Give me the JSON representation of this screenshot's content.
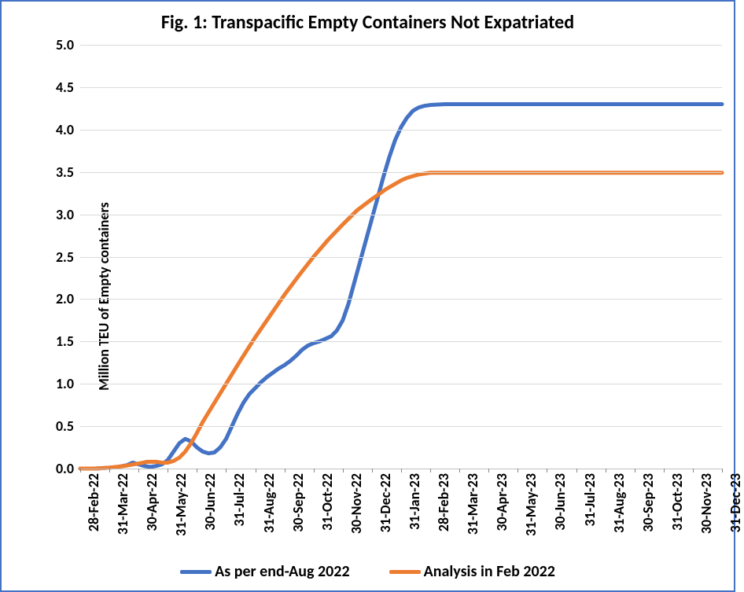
{
  "chart": {
    "type": "line",
    "title": "Fig. 1: Transpacific Empty Containers Not Expatriated",
    "ylabel": "Million TEU of Empty containers",
    "title_fontsize": 24,
    "label_fontsize": 18,
    "tick_fontsize": 18,
    "legend_fontsize": 20,
    "font_weight": "bold",
    "background_color": "#ffffff",
    "border_color": "#4472c4",
    "grid_color": "#d9d9d9",
    "line_width": 5,
    "ylim": [
      0.0,
      5.0
    ],
    "ytick_step": 0.5,
    "yticks": [
      "0.0",
      "0.5",
      "1.0",
      "1.5",
      "2.0",
      "2.5",
      "3.0",
      "3.5",
      "4.0",
      "4.5",
      "5.0"
    ],
    "xticks": [
      "28-Feb-22",
      "31-Mar-22",
      "30-Apr-22",
      "31-May-22",
      "30-Jun-22",
      "31-Jul-22",
      "31-Aug-22",
      "30-Sep-22",
      "31-Oct-22",
      "30-Nov-22",
      "31-Dec-22",
      "31-Jan-23",
      "28-Feb-23",
      "31-Mar-23",
      "30-Apr-23",
      "31-May-23",
      "30-Jun-23",
      "31-Jul-23",
      "31-Aug-23",
      "30-Sep-23",
      "31-Oct-23",
      "30-Nov-23",
      "31-Dec-23"
    ],
    "series": [
      {
        "name": "As per end-Aug 2022",
        "color": "#4472c4",
        "points": [
          [
            0,
            0.0
          ],
          [
            0.5,
            0.0
          ],
          [
            1,
            0.01
          ],
          [
            1.3,
            0.02
          ],
          [
            1.6,
            0.04
          ],
          [
            1.8,
            0.07
          ],
          [
            2,
            0.05
          ],
          [
            2.2,
            0.03
          ],
          [
            2.4,
            0.02
          ],
          [
            2.6,
            0.03
          ],
          [
            2.8,
            0.05
          ],
          [
            3,
            0.1
          ],
          [
            3.2,
            0.2
          ],
          [
            3.4,
            0.3
          ],
          [
            3.6,
            0.35
          ],
          [
            3.8,
            0.32
          ],
          [
            4,
            0.25
          ],
          [
            4.2,
            0.2
          ],
          [
            4.4,
            0.18
          ],
          [
            4.6,
            0.19
          ],
          [
            4.8,
            0.25
          ],
          [
            5,
            0.35
          ],
          [
            5.2,
            0.5
          ],
          [
            5.4,
            0.65
          ],
          [
            5.6,
            0.78
          ],
          [
            5.8,
            0.88
          ],
          [
            6,
            0.95
          ],
          [
            6.2,
            1.02
          ],
          [
            6.4,
            1.08
          ],
          [
            6.6,
            1.13
          ],
          [
            6.8,
            1.18
          ],
          [
            7,
            1.22
          ],
          [
            7.2,
            1.27
          ],
          [
            7.4,
            1.33
          ],
          [
            7.6,
            1.4
          ],
          [
            7.8,
            1.45
          ],
          [
            8,
            1.48
          ],
          [
            8.2,
            1.5
          ],
          [
            8.4,
            1.53
          ],
          [
            8.6,
            1.56
          ],
          [
            8.8,
            1.63
          ],
          [
            9,
            1.75
          ],
          [
            9.2,
            1.95
          ],
          [
            9.4,
            2.2
          ],
          [
            9.6,
            2.45
          ],
          [
            9.8,
            2.7
          ],
          [
            10,
            2.95
          ],
          [
            10.2,
            3.2
          ],
          [
            10.4,
            3.45
          ],
          [
            10.6,
            3.68
          ],
          [
            10.8,
            3.88
          ],
          [
            11,
            4.03
          ],
          [
            11.2,
            4.14
          ],
          [
            11.4,
            4.22
          ],
          [
            11.6,
            4.26
          ],
          [
            11.8,
            4.28
          ],
          [
            12,
            4.29
          ],
          [
            12.5,
            4.3
          ],
          [
            13,
            4.3
          ],
          [
            14,
            4.3
          ],
          [
            15,
            4.3
          ],
          [
            16,
            4.3
          ],
          [
            17,
            4.3
          ],
          [
            18,
            4.3
          ],
          [
            19,
            4.3
          ],
          [
            20,
            4.3
          ],
          [
            21,
            4.3
          ],
          [
            22,
            4.3
          ]
        ]
      },
      {
        "name": "Analysis in Feb 2022",
        "color": "#ed7d31",
        "points": [
          [
            0,
            0.0
          ],
          [
            0.5,
            0.0
          ],
          [
            1,
            0.01
          ],
          [
            1.5,
            0.03
          ],
          [
            2,
            0.06
          ],
          [
            2.3,
            0.08
          ],
          [
            2.6,
            0.08
          ],
          [
            2.8,
            0.07
          ],
          [
            3,
            0.07
          ],
          [
            3.2,
            0.09
          ],
          [
            3.4,
            0.13
          ],
          [
            3.6,
            0.2
          ],
          [
            3.8,
            0.3
          ],
          [
            4,
            0.42
          ],
          [
            4.2,
            0.55
          ],
          [
            4.5,
            0.72
          ],
          [
            5,
            1.0
          ],
          [
            5.5,
            1.28
          ],
          [
            6,
            1.55
          ],
          [
            6.5,
            1.8
          ],
          [
            7,
            2.05
          ],
          [
            7.5,
            2.28
          ],
          [
            8,
            2.5
          ],
          [
            8.5,
            2.7
          ],
          [
            9,
            2.88
          ],
          [
            9.5,
            3.05
          ],
          [
            10,
            3.18
          ],
          [
            10.5,
            3.3
          ],
          [
            11,
            3.4
          ],
          [
            11.2,
            3.43
          ],
          [
            11.4,
            3.45
          ],
          [
            11.6,
            3.47
          ],
          [
            11.8,
            3.48
          ],
          [
            12,
            3.49
          ],
          [
            12.5,
            3.49
          ],
          [
            13,
            3.49
          ],
          [
            14,
            3.49
          ],
          [
            15,
            3.49
          ],
          [
            16,
            3.49
          ],
          [
            17,
            3.49
          ],
          [
            18,
            3.49
          ],
          [
            19,
            3.49
          ],
          [
            20,
            3.49
          ],
          [
            21,
            3.49
          ],
          [
            22,
            3.49
          ]
        ]
      }
    ],
    "legend": {
      "items": [
        {
          "label": "As per end-Aug 2022",
          "color": "#4472c4"
        },
        {
          "label": "Analysis in Feb 2022",
          "color": "#ed7d31"
        }
      ]
    }
  }
}
